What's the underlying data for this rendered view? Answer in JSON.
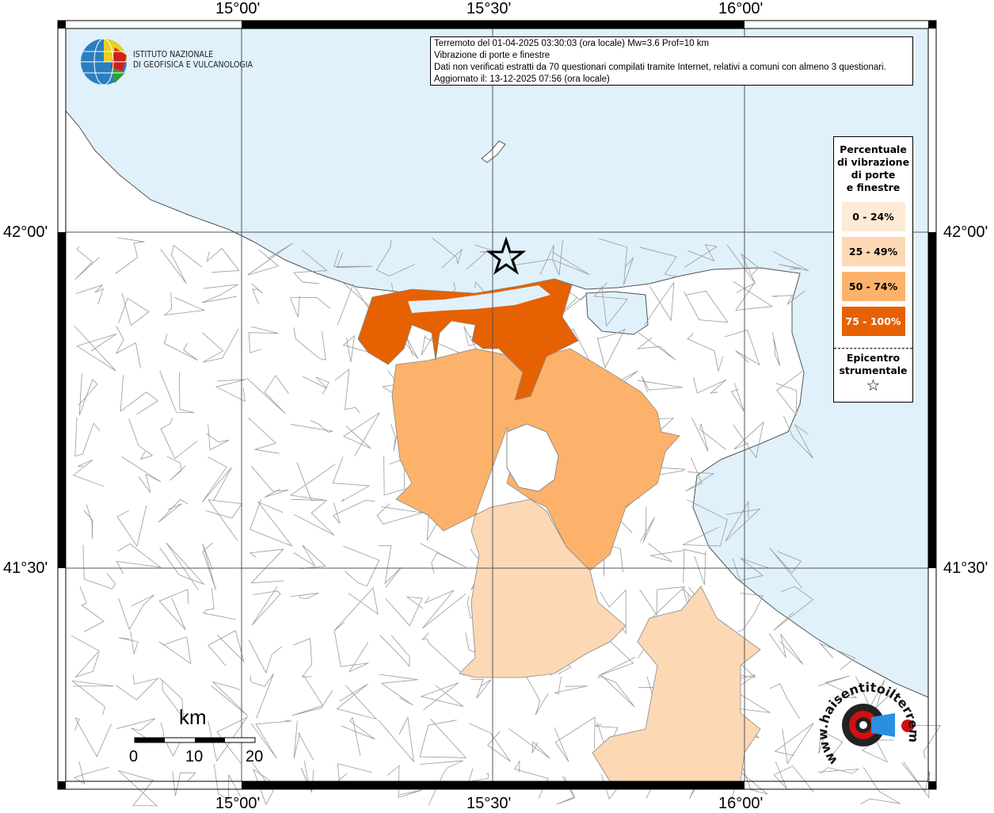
{
  "info_box": {
    "line1": "Terremoto del 01-04-2025 03:30:03 (ora locale) Mw=3.6 Prof=10 km",
    "line2": "Vibrazione di porte e finestre",
    "line3": "Dati non verificati estratti da 70 questionari compilati tramite Internet, relativi a comuni con almeno 3 questionari.",
    "line4": "Aggiornato il: 13-12-2025 07:56 (ora locale)"
  },
  "logo": {
    "text1": "ISTITUTO NAZIONALE",
    "text2": "DI GEOFISICA E VULCANOLOGIA"
  },
  "legend": {
    "title": [
      "Percentuale",
      "di vibrazione",
      "di porte",
      "e finestre"
    ],
    "classes": [
      {
        "label": "0 - 24%",
        "color": "#fdebd6"
      },
      {
        "label": "25 - 49%",
        "color": "#fdd8b4"
      },
      {
        "label": "50 - 74%",
        "color": "#fdb26b"
      },
      {
        "label": "75 - 100%",
        "color": "#e66101"
      }
    ],
    "epicenter_label": [
      "Epicentro",
      "strumentale"
    ]
  },
  "axes": {
    "lon_ticks": [
      "15°00'",
      "15°30'",
      "16°00'"
    ],
    "lat_ticks": [
      "42°00'",
      "41°30'"
    ]
  },
  "scale_bar": {
    "unit": "km",
    "labels": [
      "0",
      "10",
      "20"
    ]
  },
  "watermark": {
    "text": "www.haisentitoilterremoto.it"
  },
  "colors": {
    "sea": "#e0f1fc",
    "land": "#ffffff",
    "boundaries": "#999999"
  }
}
